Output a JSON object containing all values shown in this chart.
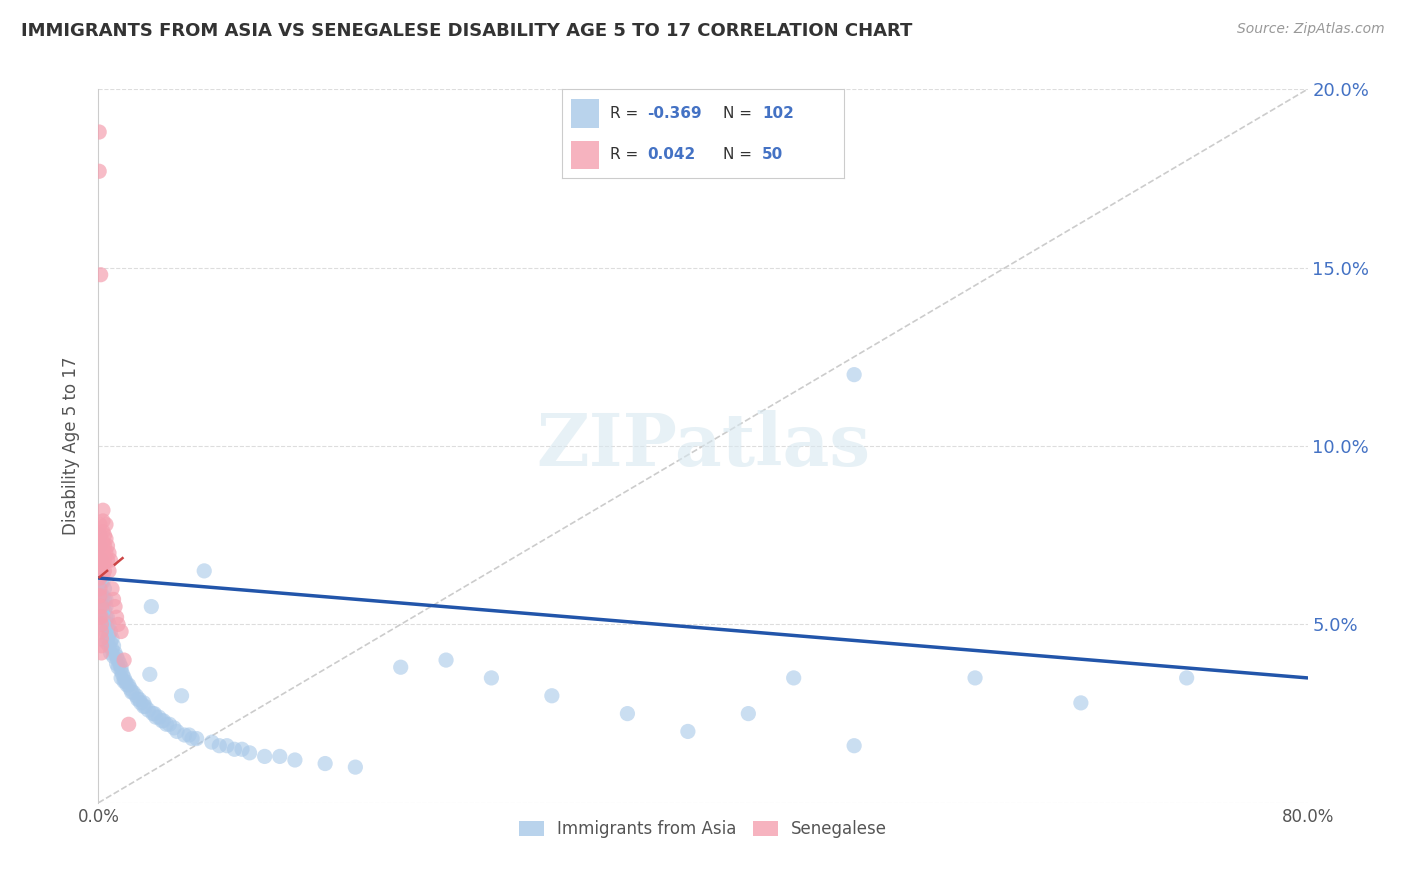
{
  "title": "IMMIGRANTS FROM ASIA VS SENEGALESE DISABILITY AGE 5 TO 17 CORRELATION CHART",
  "source": "Source: ZipAtlas.com",
  "ylabel": "Disability Age 5 to 17",
  "legend_labels": [
    "Immigrants from Asia",
    "Senegalese"
  ],
  "blue_color": "#a8c8e8",
  "pink_color": "#f4a0b0",
  "blue_line_color": "#2255aa",
  "pink_line_color": "#cc4444",
  "blue_R": -0.369,
  "blue_N": 102,
  "pink_R": 0.042,
  "pink_N": 50,
  "xlim": [
    0.0,
    0.8
  ],
  "ylim": [
    0.0,
    0.2
  ],
  "x_ticks": [
    0.0,
    0.8
  ],
  "y_ticks": [
    0.0,
    0.05,
    0.1,
    0.15,
    0.2
  ],
  "blue_scatter_x": [
    0.001,
    0.001,
    0.001,
    0.002,
    0.002,
    0.002,
    0.002,
    0.003,
    0.003,
    0.003,
    0.003,
    0.003,
    0.004,
    0.004,
    0.004,
    0.004,
    0.005,
    0.005,
    0.005,
    0.005,
    0.005,
    0.006,
    0.006,
    0.006,
    0.007,
    0.007,
    0.007,
    0.008,
    0.008,
    0.008,
    0.009,
    0.009,
    0.01,
    0.01,
    0.011,
    0.012,
    0.012,
    0.013,
    0.013,
    0.014,
    0.015,
    0.015,
    0.015,
    0.016,
    0.017,
    0.017,
    0.018,
    0.019,
    0.02,
    0.021,
    0.022,
    0.023,
    0.025,
    0.026,
    0.027,
    0.028,
    0.03,
    0.03,
    0.031,
    0.033,
    0.034,
    0.035,
    0.036,
    0.037,
    0.038,
    0.04,
    0.042,
    0.043,
    0.045,
    0.047,
    0.05,
    0.052,
    0.055,
    0.057,
    0.06,
    0.062,
    0.065,
    0.07,
    0.075,
    0.08,
    0.085,
    0.09,
    0.095,
    0.1,
    0.11,
    0.12,
    0.13,
    0.15,
    0.17,
    0.2,
    0.23,
    0.26,
    0.3,
    0.35,
    0.39,
    0.43,
    0.46,
    0.5,
    0.58,
    0.65,
    0.5,
    0.72
  ],
  "blue_scatter_y": [
    0.075,
    0.072,
    0.068,
    0.068,
    0.065,
    0.062,
    0.058,
    0.065,
    0.062,
    0.058,
    0.055,
    0.052,
    0.06,
    0.057,
    0.054,
    0.05,
    0.057,
    0.055,
    0.052,
    0.048,
    0.045,
    0.052,
    0.049,
    0.046,
    0.05,
    0.047,
    0.044,
    0.048,
    0.045,
    0.042,
    0.046,
    0.043,
    0.044,
    0.041,
    0.042,
    0.041,
    0.039,
    0.04,
    0.038,
    0.039,
    0.038,
    0.037,
    0.035,
    0.036,
    0.035,
    0.034,
    0.034,
    0.033,
    0.033,
    0.032,
    0.031,
    0.031,
    0.03,
    0.029,
    0.029,
    0.028,
    0.028,
    0.027,
    0.027,
    0.026,
    0.036,
    0.055,
    0.025,
    0.025,
    0.024,
    0.024,
    0.023,
    0.023,
    0.022,
    0.022,
    0.021,
    0.02,
    0.03,
    0.019,
    0.019,
    0.018,
    0.018,
    0.065,
    0.017,
    0.016,
    0.016,
    0.015,
    0.015,
    0.014,
    0.013,
    0.013,
    0.012,
    0.011,
    0.01,
    0.038,
    0.04,
    0.035,
    0.03,
    0.025,
    0.02,
    0.025,
    0.035,
    0.016,
    0.035,
    0.028,
    0.12,
    0.035
  ],
  "pink_scatter_x": [
    0.0005,
    0.0005,
    0.0005,
    0.0005,
    0.001,
    0.001,
    0.001,
    0.001,
    0.001,
    0.001,
    0.001,
    0.001,
    0.001,
    0.001,
    0.001,
    0.0015,
    0.002,
    0.002,
    0.002,
    0.002,
    0.002,
    0.002,
    0.002,
    0.003,
    0.003,
    0.003,
    0.003,
    0.003,
    0.003,
    0.003,
    0.004,
    0.004,
    0.004,
    0.004,
    0.005,
    0.005,
    0.005,
    0.006,
    0.006,
    0.007,
    0.007,
    0.008,
    0.009,
    0.01,
    0.011,
    0.012,
    0.013,
    0.015,
    0.017,
    0.02
  ],
  "pink_scatter_y": [
    0.188,
    0.177,
    0.068,
    0.058,
    0.078,
    0.075,
    0.073,
    0.07,
    0.068,
    0.065,
    0.063,
    0.06,
    0.058,
    0.055,
    0.052,
    0.148,
    0.055,
    0.052,
    0.05,
    0.048,
    0.046,
    0.044,
    0.042,
    0.082,
    0.079,
    0.076,
    0.073,
    0.07,
    0.067,
    0.064,
    0.075,
    0.072,
    0.068,
    0.065,
    0.078,
    0.074,
    0.07,
    0.072,
    0.068,
    0.07,
    0.065,
    0.068,
    0.06,
    0.057,
    0.055,
    0.052,
    0.05,
    0.048,
    0.04,
    0.022
  ],
  "blue_line_x": [
    0.0,
    0.8
  ],
  "blue_line_y": [
    0.063,
    0.035
  ],
  "pink_line_x": [
    0.0,
    0.02
  ],
  "pink_line_y": [
    0.063,
    0.07
  ],
  "ref_line_x": [
    0.0,
    0.8
  ],
  "ref_line_y": [
    0.0,
    0.2
  ],
  "background_color": "#ffffff",
  "grid_color": "#dddddd",
  "watermark": "ZIPatlas"
}
